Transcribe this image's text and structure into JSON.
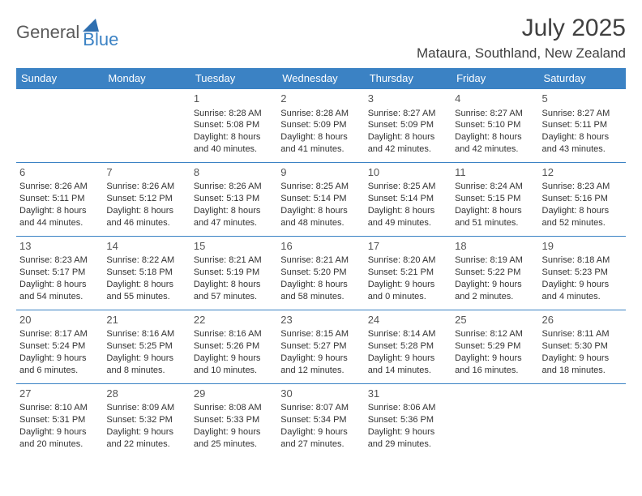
{
  "brand": {
    "part1": "General",
    "part2": "Blue"
  },
  "title": "July 2025",
  "location": "Mataura, Southland, New Zealand",
  "colors": {
    "header_bg": "#3b82c4",
    "header_text": "#ffffff",
    "border": "#3b82c4",
    "body_text": "#333333",
    "title_text": "#404040"
  },
  "day_headers": [
    "Sunday",
    "Monday",
    "Tuesday",
    "Wednesday",
    "Thursday",
    "Friday",
    "Saturday"
  ],
  "weeks": [
    [
      null,
      null,
      {
        "n": "1",
        "sr": "8:28 AM",
        "ss": "5:08 PM",
        "dl": "8 hours and 40 minutes."
      },
      {
        "n": "2",
        "sr": "8:28 AM",
        "ss": "5:09 PM",
        "dl": "8 hours and 41 minutes."
      },
      {
        "n": "3",
        "sr": "8:27 AM",
        "ss": "5:09 PM",
        "dl": "8 hours and 42 minutes."
      },
      {
        "n": "4",
        "sr": "8:27 AM",
        "ss": "5:10 PM",
        "dl": "8 hours and 42 minutes."
      },
      {
        "n": "5",
        "sr": "8:27 AM",
        "ss": "5:11 PM",
        "dl": "8 hours and 43 minutes."
      }
    ],
    [
      {
        "n": "6",
        "sr": "8:26 AM",
        "ss": "5:11 PM",
        "dl": "8 hours and 44 minutes."
      },
      {
        "n": "7",
        "sr": "8:26 AM",
        "ss": "5:12 PM",
        "dl": "8 hours and 46 minutes."
      },
      {
        "n": "8",
        "sr": "8:26 AM",
        "ss": "5:13 PM",
        "dl": "8 hours and 47 minutes."
      },
      {
        "n": "9",
        "sr": "8:25 AM",
        "ss": "5:14 PM",
        "dl": "8 hours and 48 minutes."
      },
      {
        "n": "10",
        "sr": "8:25 AM",
        "ss": "5:14 PM",
        "dl": "8 hours and 49 minutes."
      },
      {
        "n": "11",
        "sr": "8:24 AM",
        "ss": "5:15 PM",
        "dl": "8 hours and 51 minutes."
      },
      {
        "n": "12",
        "sr": "8:23 AM",
        "ss": "5:16 PM",
        "dl": "8 hours and 52 minutes."
      }
    ],
    [
      {
        "n": "13",
        "sr": "8:23 AM",
        "ss": "5:17 PM",
        "dl": "8 hours and 54 minutes."
      },
      {
        "n": "14",
        "sr": "8:22 AM",
        "ss": "5:18 PM",
        "dl": "8 hours and 55 minutes."
      },
      {
        "n": "15",
        "sr": "8:21 AM",
        "ss": "5:19 PM",
        "dl": "8 hours and 57 minutes."
      },
      {
        "n": "16",
        "sr": "8:21 AM",
        "ss": "5:20 PM",
        "dl": "8 hours and 58 minutes."
      },
      {
        "n": "17",
        "sr": "8:20 AM",
        "ss": "5:21 PM",
        "dl": "9 hours and 0 minutes."
      },
      {
        "n": "18",
        "sr": "8:19 AM",
        "ss": "5:22 PM",
        "dl": "9 hours and 2 minutes."
      },
      {
        "n": "19",
        "sr": "8:18 AM",
        "ss": "5:23 PM",
        "dl": "9 hours and 4 minutes."
      }
    ],
    [
      {
        "n": "20",
        "sr": "8:17 AM",
        "ss": "5:24 PM",
        "dl": "9 hours and 6 minutes."
      },
      {
        "n": "21",
        "sr": "8:16 AM",
        "ss": "5:25 PM",
        "dl": "9 hours and 8 minutes."
      },
      {
        "n": "22",
        "sr": "8:16 AM",
        "ss": "5:26 PM",
        "dl": "9 hours and 10 minutes."
      },
      {
        "n": "23",
        "sr": "8:15 AM",
        "ss": "5:27 PM",
        "dl": "9 hours and 12 minutes."
      },
      {
        "n": "24",
        "sr": "8:14 AM",
        "ss": "5:28 PM",
        "dl": "9 hours and 14 minutes."
      },
      {
        "n": "25",
        "sr": "8:12 AM",
        "ss": "5:29 PM",
        "dl": "9 hours and 16 minutes."
      },
      {
        "n": "26",
        "sr": "8:11 AM",
        "ss": "5:30 PM",
        "dl": "9 hours and 18 minutes."
      }
    ],
    [
      {
        "n": "27",
        "sr": "8:10 AM",
        "ss": "5:31 PM",
        "dl": "9 hours and 20 minutes."
      },
      {
        "n": "28",
        "sr": "8:09 AM",
        "ss": "5:32 PM",
        "dl": "9 hours and 22 minutes."
      },
      {
        "n": "29",
        "sr": "8:08 AM",
        "ss": "5:33 PM",
        "dl": "9 hours and 25 minutes."
      },
      {
        "n": "30",
        "sr": "8:07 AM",
        "ss": "5:34 PM",
        "dl": "9 hours and 27 minutes."
      },
      {
        "n": "31",
        "sr": "8:06 AM",
        "ss": "5:36 PM",
        "dl": "9 hours and 29 minutes."
      },
      null,
      null
    ]
  ],
  "labels": {
    "sunrise": "Sunrise:",
    "sunset": "Sunset:",
    "daylight": "Daylight:"
  }
}
